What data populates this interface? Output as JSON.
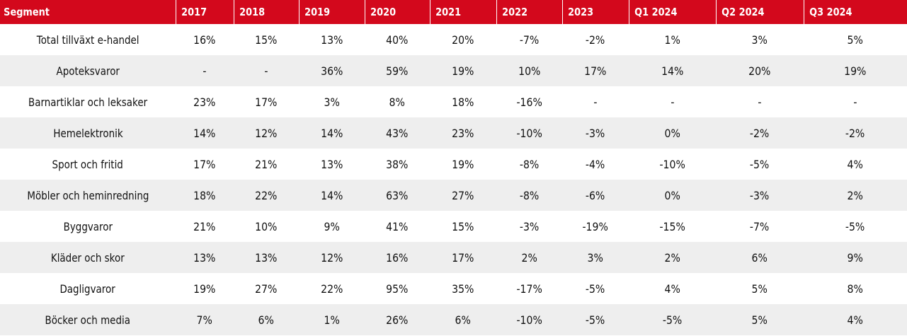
{
  "columns": [
    "Segment",
    "2017",
    "2018",
    "2019",
    "2020",
    "2021",
    "2022",
    "2023",
    "Q1 2024",
    "Q2 2024",
    "Q3 2024"
  ],
  "rows": [
    {
      "segment": "Total tillväxt e-handel",
      "values": [
        "16%",
        "15%",
        "13%",
        "40%",
        "20%",
        "-7%",
        "-2%",
        "1%",
        "3%",
        "5%"
      ]
    },
    {
      "segment": "Apoteksvaror",
      "values": [
        "-",
        "-",
        "36%",
        "59%",
        "19%",
        "10%",
        "17%",
        "14%",
        "20%",
        "19%"
      ]
    },
    {
      "segment": "Barnartiklar och leksaker",
      "values": [
        "23%",
        "17%",
        "3%",
        "8%",
        "18%",
        "-16%",
        "-",
        "-",
        "-",
        "-"
      ]
    },
    {
      "segment": "Hemelektronik",
      "values": [
        "14%",
        "12%",
        "14%",
        "43%",
        "23%",
        "-10%",
        "-3%",
        "0%",
        "-2%",
        "-2%"
      ]
    },
    {
      "segment": "Sport och fritid",
      "values": [
        "17%",
        "21%",
        "13%",
        "38%",
        "19%",
        "-8%",
        "-4%",
        "-10%",
        "-5%",
        "4%"
      ]
    },
    {
      "segment": "Möbler och heminredning",
      "values": [
        "18%",
        "22%",
        "14%",
        "63%",
        "27%",
        "-8%",
        "-6%",
        "0%",
        "-3%",
        "2%"
      ]
    },
    {
      "segment": "Byggvaror",
      "values": [
        "21%",
        "10%",
        "9%",
        "41%",
        "15%",
        "-3%",
        "-19%",
        "-15%",
        "-7%",
        "-5%"
      ]
    },
    {
      "segment": "Kläder och skor",
      "values": [
        "13%",
        "13%",
        "12%",
        "16%",
        "17%",
        "2%",
        "3%",
        "2%",
        "6%",
        "9%"
      ]
    },
    {
      "segment": "Dagligvaror",
      "values": [
        "19%",
        "27%",
        "22%",
        "95%",
        "35%",
        "-17%",
        "-5%",
        "4%",
        "5%",
        "8%"
      ]
    },
    {
      "segment": "Böcker och media",
      "values": [
        "7%",
        "6%",
        "1%",
        "26%",
        "6%",
        "-10%",
        "-5%",
        "-5%",
        "5%",
        "4%"
      ]
    }
  ],
  "colors": {
    "header_bg": "#d3081c",
    "header_text": "#ffffff",
    "row_alt_bg": "#eeeeee",
    "row_bg": "#ffffff"
  }
}
